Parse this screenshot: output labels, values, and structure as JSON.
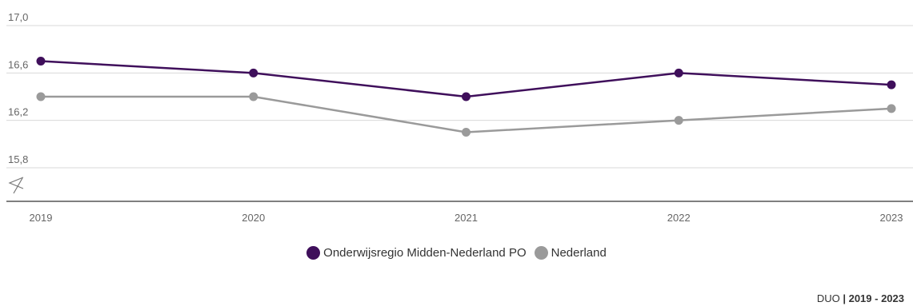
{
  "chart_data": {
    "type": "line",
    "categories": [
      "2019",
      "2020",
      "2021",
      "2022",
      "2023"
    ],
    "series": [
      {
        "name": "Onderwijsregio Midden-Nederland PO",
        "color": "#3f0f5b",
        "values": [
          16.7,
          16.6,
          16.4,
          16.6,
          16.5
        ]
      },
      {
        "name": "Nederland",
        "color": "#9a9a9a",
        "values": [
          16.4,
          16.4,
          16.1,
          16.2,
          16.3
        ]
      }
    ],
    "y_ticks": [
      "17,0",
      "16,6",
      "16,2",
      "15,8"
    ],
    "y_tick_values": [
      17.0,
      16.6,
      16.2,
      15.8
    ],
    "ylim": [
      15.8,
      17.0
    ],
    "axis_break": true,
    "grid": true,
    "legend_position": "bottom-center"
  },
  "source": {
    "prefix": "DUO",
    "separator": "|",
    "years": "2019 - 2023"
  }
}
